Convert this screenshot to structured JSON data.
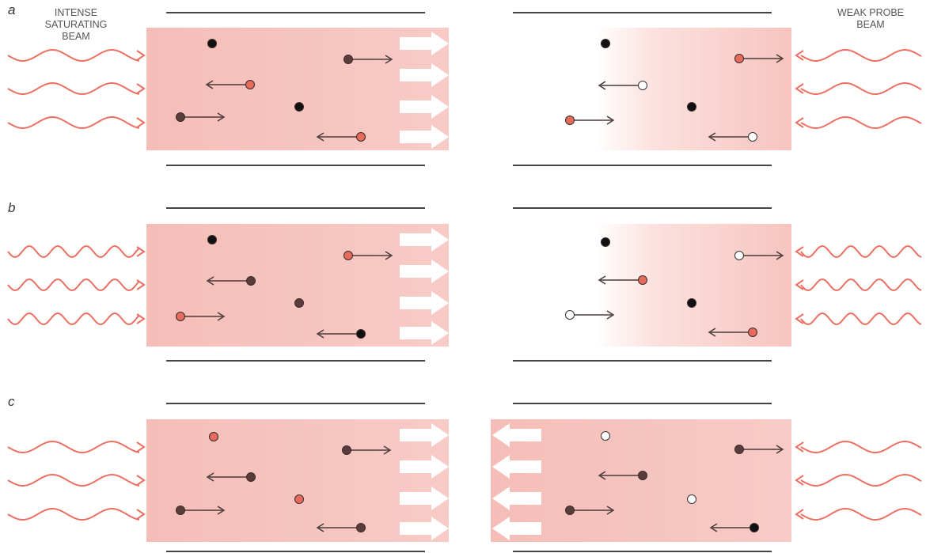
{
  "panels": [
    {
      "label": "a"
    },
    {
      "label": "b"
    },
    {
      "label": "c"
    }
  ],
  "left_beam": {
    "lines": [
      "INTENSE",
      "SATURATING",
      "BEAM"
    ]
  },
  "right_beam": {
    "lines": [
      "WEAK PROBE",
      "BEAM"
    ]
  }
}
